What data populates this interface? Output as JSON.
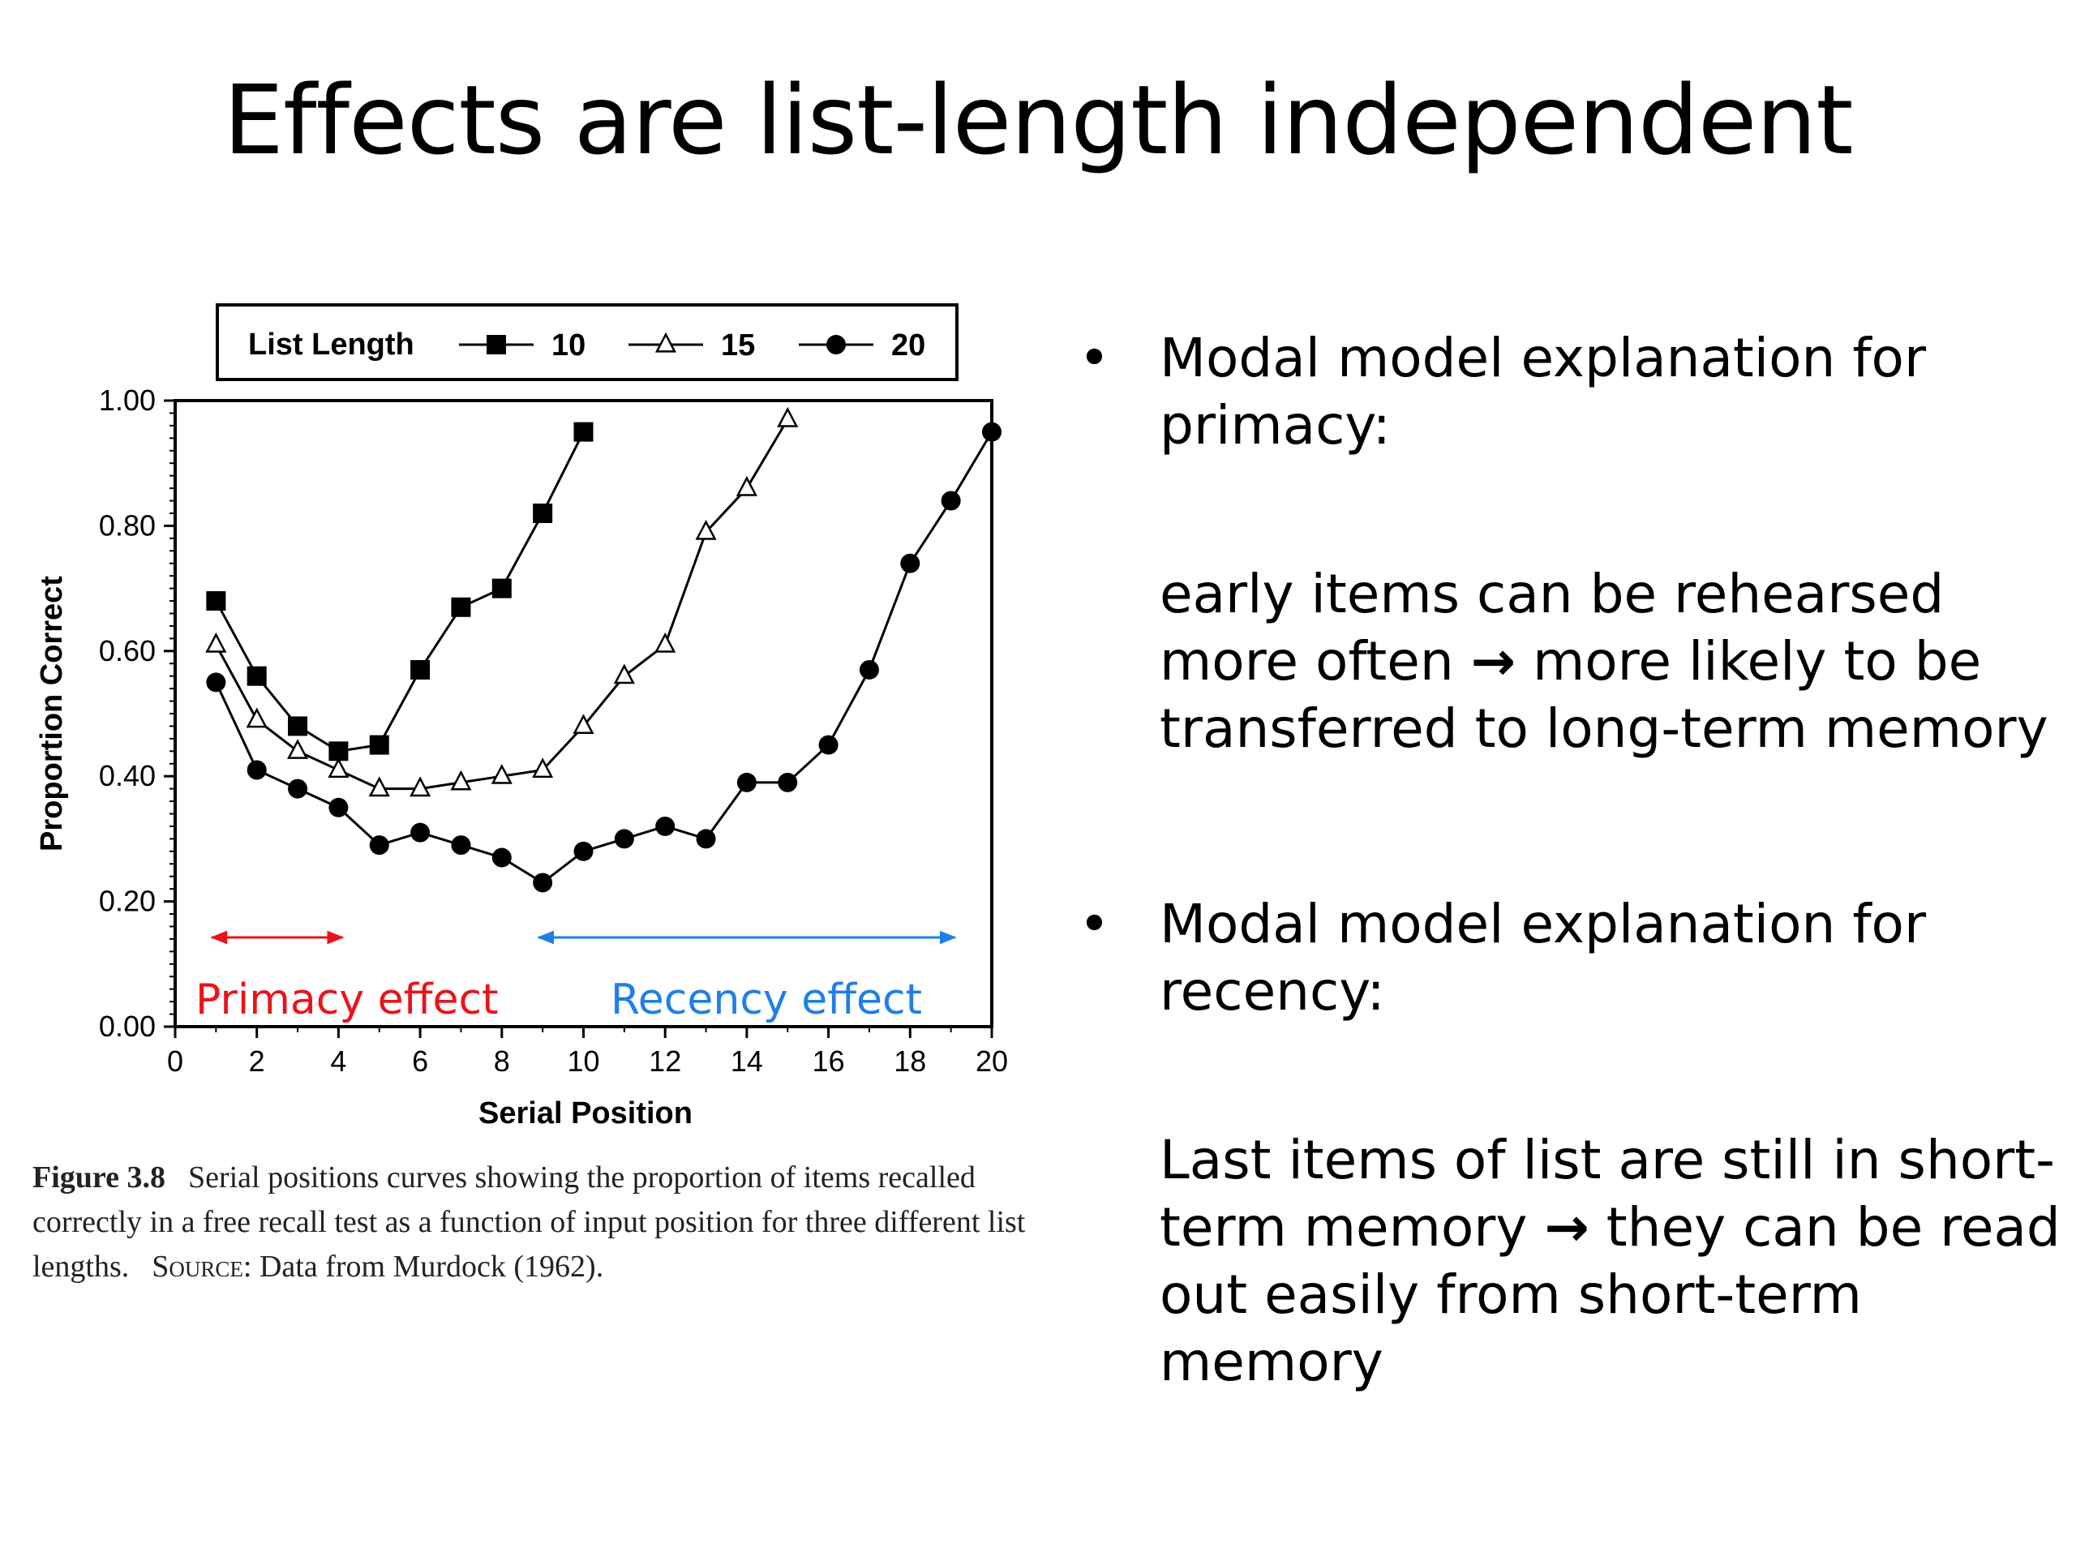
{
  "slide": {
    "title": "Effects are list-length independent"
  },
  "chart_data": {
    "type": "line",
    "xlabel": "Serial Position",
    "ylabel": "Proportion Correct",
    "xlim": [
      0,
      20
    ],
    "ylim": [
      0,
      1
    ],
    "x_ticks": [
      "0",
      "2",
      "4",
      "6",
      "8",
      "10",
      "12",
      "14",
      "16",
      "18",
      "20"
    ],
    "y_ticks": [
      "0.00",
      "0.20",
      "0.40",
      "0.60",
      "0.80",
      "1.00"
    ],
    "legend": {
      "title": "List Length",
      "placement": "top"
    },
    "series": [
      {
        "name": "10",
        "marker": "square",
        "x": [
          1,
          2,
          3,
          4,
          5,
          6,
          7,
          8,
          9,
          10
        ],
        "values": [
          0.68,
          0.56,
          0.48,
          0.44,
          0.45,
          0.57,
          0.67,
          0.7,
          0.82,
          0.95
        ]
      },
      {
        "name": "15",
        "marker": "triangle-open",
        "x": [
          1,
          2,
          3,
          4,
          5,
          6,
          7,
          8,
          9,
          10,
          11,
          12,
          13,
          14,
          15
        ],
        "values": [
          0.61,
          0.49,
          0.44,
          0.41,
          0.38,
          0.38,
          0.39,
          0.4,
          0.41,
          0.48,
          0.56,
          0.61,
          0.79,
          0.86,
          0.97
        ]
      },
      {
        "name": "20",
        "marker": "circle",
        "x": [
          1,
          2,
          3,
          4,
          5,
          6,
          7,
          8,
          9,
          10,
          11,
          12,
          13,
          14,
          15,
          16,
          17,
          18,
          19,
          20
        ],
        "values": [
          0.55,
          0.41,
          0.38,
          0.35,
          0.29,
          0.31,
          0.29,
          0.27,
          0.23,
          0.28,
          0.3,
          0.32,
          0.3,
          0.39,
          0.39,
          0.45,
          0.57,
          0.74,
          0.84,
          0.95
        ]
      }
    ],
    "annotations": [
      {
        "text": "Primacy effect",
        "color": "#e8141b",
        "x_start": 1,
        "x_end": 4
      },
      {
        "text": "Recency effect",
        "color": "#1f7fe6",
        "x_start": 9,
        "x_end": 19
      }
    ],
    "grid": false
  },
  "caption": {
    "figure_label": "Figure 3.8",
    "text": "Serial positions curves showing the proportion of items recalled correctly in a free recall test as a function of input position for three different list lengths.",
    "source_label": "Source:",
    "source_text": "Data from Murdock (1962)."
  },
  "bullets": [
    {
      "bullet": "•",
      "heading": "Modal model explanation for primacy:",
      "body_pre": "early items can be rehearsed more often",
      "arrow": "→",
      "body_post": "more likely to be transferred to long-term memory"
    },
    {
      "bullet": "•",
      "heading": "Modal model explanation for recency:",
      "body_pre": "Last items of list are still in short-term memory",
      "arrow": "→",
      "body_post": "they can be read out easily from short-term memory"
    }
  ]
}
